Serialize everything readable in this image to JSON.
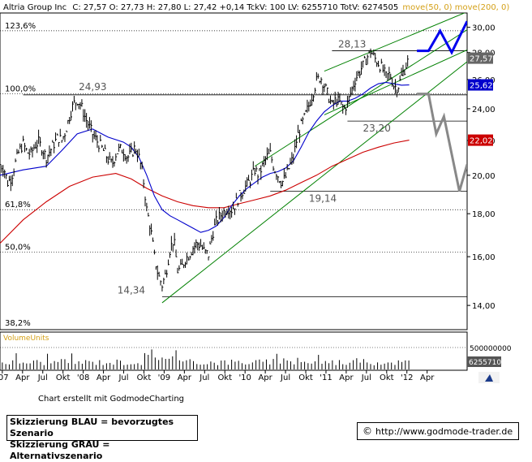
{
  "header": {
    "name": "Altria Group Inc",
    "quote": "C: 27,57  O: 27,73  H: 27,80  L: 27,42  +0,14  TckV: 100  LV: 6255710  TotV: 6274505",
    "ma_legend": "move(50, 0)  move(200, 0)"
  },
  "chart_data": {
    "type": "candlestick",
    "title": "Altria Group Inc",
    "x_tick_labels": [
      "'07",
      "Apr",
      "Jul",
      "Okt",
      "'08",
      "Apr",
      "Jul",
      "Okt",
      "'09",
      "Apr",
      "Jul",
      "Okt",
      "'10",
      "Apr",
      "Jul",
      "Okt",
      "'11",
      "Apr",
      "Jul",
      "Okt",
      "'12",
      "Apr"
    ],
    "y_ticks": [
      14,
      16,
      18,
      20,
      22,
      24,
      26,
      28,
      30
    ],
    "y_tick_labels": [
      "14,00",
      "16,00",
      "18,00",
      "20,00",
      "22,00",
      "24,00",
      "26,00",
      "28,00",
      "30,00"
    ],
    "ylim": [
      13.1,
      31.2
    ],
    "xlim": [
      0,
      60.5
    ],
    "price_path": [
      [
        0,
        20.6
      ],
      [
        0.5,
        20.4
      ],
      [
        1,
        19.6
      ],
      [
        1.5,
        19.9
      ],
      [
        2,
        20.7
      ],
      [
        2.5,
        21.4
      ],
      [
        3,
        21.8
      ],
      [
        3.5,
        21.3
      ],
      [
        4,
        21.2
      ],
      [
        4.5,
        21.7
      ],
      [
        5,
        21.9
      ],
      [
        5.5,
        21.5
      ],
      [
        6,
        21.0
      ],
      [
        6.5,
        21.4
      ],
      [
        7,
        21.8
      ],
      [
        7.5,
        22.2
      ],
      [
        8,
        22.0
      ],
      [
        8.5,
        22.6
      ],
      [
        9,
        23.5
      ],
      [
        9.5,
        24.3
      ],
      [
        10,
        24.6
      ],
      [
        10.5,
        24.2
      ],
      [
        11,
        23.5
      ],
      [
        11.5,
        22.9
      ],
      [
        12,
        22.4
      ],
      [
        12.5,
        22.0
      ],
      [
        13,
        21.7
      ],
      [
        13.5,
        21.3
      ],
      [
        14,
        20.9
      ],
      [
        14.5,
        20.6
      ],
      [
        15,
        21.2
      ],
      [
        15.5,
        21.5
      ],
      [
        16,
        21.4
      ],
      [
        16.5,
        21.0
      ],
      [
        17,
        21.2
      ],
      [
        17.5,
        21.6
      ],
      [
        18,
        21.0
      ],
      [
        18.5,
        20.0
      ],
      [
        19,
        18.2
      ],
      [
        19.5,
        17.3
      ],
      [
        20,
        16.0
      ],
      [
        20.5,
        15.2
      ],
      [
        21,
        14.8
      ],
      [
        21.5,
        15.3
      ],
      [
        22,
        16.3
      ],
      [
        22.5,
        16.8
      ],
      [
        23,
        15.4
      ],
      [
        23.5,
        15.5
      ],
      [
        24,
        15.9
      ],
      [
        24.5,
        16.1
      ],
      [
        25,
        16.4
      ],
      [
        25.5,
        16.6
      ],
      [
        26,
        16.5
      ],
      [
        26.5,
        16.2
      ],
      [
        27,
        16.1
      ],
      [
        27.5,
        17.0
      ],
      [
        28,
        17.6
      ],
      [
        28.5,
        17.9
      ],
      [
        29,
        18.1
      ],
      [
        29.5,
        18.3
      ],
      [
        30,
        18.2
      ],
      [
        30.5,
        18.5
      ],
      [
        31,
        18.9
      ],
      [
        31.5,
        19.2
      ],
      [
        32,
        19.5
      ],
      [
        32.5,
        19.8
      ],
      [
        33,
        20.3
      ],
      [
        33.5,
        20.0
      ],
      [
        34,
        20.5
      ],
      [
        34.5,
        21.0
      ],
      [
        35,
        21.2
      ],
      [
        35.5,
        20.4
      ],
      [
        36,
        20.0
      ],
      [
        36.5,
        19.6
      ],
      [
        37,
        19.9
      ],
      [
        37.5,
        20.5
      ],
      [
        38,
        21.0
      ],
      [
        38.5,
        22.2
      ],
      [
        39,
        22.9
      ],
      [
        39.5,
        23.5
      ],
      [
        40,
        24.2
      ],
      [
        40.5,
        25.0
      ],
      [
        41,
        25.9
      ],
      [
        41.5,
        26.2
      ],
      [
        42,
        25.6
      ],
      [
        42.5,
        24.9
      ],
      [
        43,
        24.2
      ],
      [
        43.5,
        24.6
      ],
      [
        44,
        24.4
      ],
      [
        44.5,
        24.0
      ],
      [
        45,
        24.3
      ],
      [
        45.5,
        25.2
      ],
      [
        46,
        26.0
      ],
      [
        46.5,
        26.5
      ],
      [
        47,
        27.0
      ],
      [
        47.5,
        27.6
      ],
      [
        48,
        28.1
      ],
      [
        48.5,
        27.6
      ],
      [
        49,
        27.2
      ],
      [
        49.5,
        26.8
      ],
      [
        50,
        26.2
      ],
      [
        50.5,
        26.4
      ],
      [
        51,
        25.6
      ],
      [
        51.5,
        25.4
      ],
      [
        52,
        26.2
      ],
      [
        52.5,
        26.9
      ],
      [
        53,
        27.57
      ]
    ],
    "ma50": [
      [
        0,
        20.0
      ],
      [
        3,
        20.3
      ],
      [
        6,
        20.5
      ],
      [
        8,
        21.4
      ],
      [
        10,
        22.4
      ],
      [
        12,
        22.7
      ],
      [
        14,
        22.2
      ],
      [
        16,
        21.9
      ],
      [
        17,
        21.6
      ],
      [
        18,
        21.0
      ],
      [
        19,
        20.0
      ],
      [
        20,
        18.9
      ],
      [
        21,
        18.2
      ],
      [
        22,
        17.9
      ],
      [
        23,
        17.7
      ],
      [
        24,
        17.5
      ],
      [
        25,
        17.3
      ],
      [
        26,
        17.1
      ],
      [
        27,
        17.2
      ],
      [
        28,
        17.4
      ],
      [
        29,
        17.8
      ],
      [
        30,
        18.4
      ],
      [
        31,
        18.9
      ],
      [
        32,
        19.3
      ],
      [
        33,
        19.6
      ],
      [
        34,
        19.9
      ],
      [
        35,
        20.1
      ],
      [
        36,
        20.2
      ],
      [
        37,
        20.4
      ],
      [
        38,
        20.8
      ],
      [
        39,
        21.6
      ],
      [
        40,
        22.5
      ],
      [
        41,
        23.2
      ],
      [
        42,
        23.8
      ],
      [
        43,
        24.2
      ],
      [
        44,
        24.5
      ],
      [
        45,
        24.5
      ],
      [
        46,
        24.7
      ],
      [
        47,
        25.0
      ],
      [
        48,
        25.4
      ],
      [
        49,
        25.7
      ],
      [
        50,
        25.8
      ],
      [
        51,
        25.7
      ],
      [
        52,
        25.6
      ],
      [
        53,
        25.62
      ]
    ],
    "ma200": [
      [
        0,
        16.6
      ],
      [
        3,
        17.7
      ],
      [
        6,
        18.6
      ],
      [
        9,
        19.4
      ],
      [
        12,
        19.9
      ],
      [
        15,
        20.1
      ],
      [
        17,
        19.8
      ],
      [
        19,
        19.3
      ],
      [
        21,
        18.9
      ],
      [
        23,
        18.6
      ],
      [
        25,
        18.4
      ],
      [
        27,
        18.3
      ],
      [
        29,
        18.3
      ],
      [
        31,
        18.5
      ],
      [
        33,
        18.7
      ],
      [
        35,
        18.9
      ],
      [
        37,
        19.2
      ],
      [
        39,
        19.6
      ],
      [
        41,
        20.0
      ],
      [
        43,
        20.5
      ],
      [
        45,
        20.9
      ],
      [
        47,
        21.3
      ],
      [
        49,
        21.6
      ],
      [
        51,
        21.85
      ],
      [
        53,
        22.02
      ]
    ],
    "volume_y_tick": "500000000",
    "price_badges": [
      {
        "value": 27.57,
        "label": "27,57",
        "color": "#666666"
      },
      {
        "value": 25.62,
        "label": "25,62",
        "color": "#0000cc"
      },
      {
        "value": 22.02,
        "label": "22,02",
        "color": "#cc0000"
      }
    ],
    "volume_badge": "6255710",
    "fibonacci_levels": [
      {
        "value": 29.72,
        "label": "123,6%"
      },
      {
        "value": 25.0,
        "label": "100,0%"
      },
      {
        "value": 18.2,
        "label": "61,8%"
      },
      {
        "value": 16.2,
        "label": "50,0%"
      },
      {
        "value": 12.6,
        "label": "38,2%"
      }
    ],
    "support_resistance_levels": [
      {
        "value": 28.13,
        "label": "28,13"
      },
      {
        "value": 24.93,
        "label": "24,93"
      },
      {
        "value": 23.2,
        "label": "23,20"
      },
      {
        "value": 19.14,
        "label": "19,14"
      },
      {
        "value": 14.34,
        "label": "14,34"
      }
    ],
    "trend_lines": [
      {
        "from": [
          21,
          14.1
        ],
        "to": [
          60.5,
          27.3
        ]
      },
      {
        "from": [
          33,
          20.5
        ],
        "to": [
          60.5,
          29.8
        ]
      },
      {
        "from": [
          42,
          23.6
        ],
        "to": [
          60.5,
          28.2
        ]
      },
      {
        "from": [
          42,
          26.6
        ],
        "to": [
          60.5,
          31.3
        ]
      }
    ],
    "scenarios": [
      {
        "name": "BLAU",
        "color": "#0000ee",
        "path": [
          [
            54,
            28.13
          ],
          [
            55.5,
            28.13
          ],
          [
            57,
            29.7
          ],
          [
            58.5,
            28.0
          ],
          [
            60.5,
            30.5
          ]
        ]
      },
      {
        "name": "GRAU",
        "color": "#888888",
        "path": [
          [
            54,
            25.0
          ],
          [
            55.5,
            25.0
          ],
          [
            56.5,
            22.4
          ],
          [
            57.5,
            23.5
          ],
          [
            59.5,
            19.14
          ],
          [
            60.5,
            20.6
          ]
        ]
      }
    ],
    "colors": {
      "price": "#000000",
      "ma50": "#0000cc",
      "ma200": "#cc0000",
      "trend": "#008000",
      "grid": "#000000",
      "ma_legend": "#d4a017",
      "volume": "#000000"
    }
  },
  "footer": {
    "credit": "Chart erstellt mit GodmodeCharting",
    "legend_blue": "Skizzierung BLAU = bevorzugtes Szenario",
    "legend_grey": "Skizzierung GRAU = Alternativszenario",
    "url_symbol": "©",
    "url": "http://www.godmode-trader.de"
  }
}
